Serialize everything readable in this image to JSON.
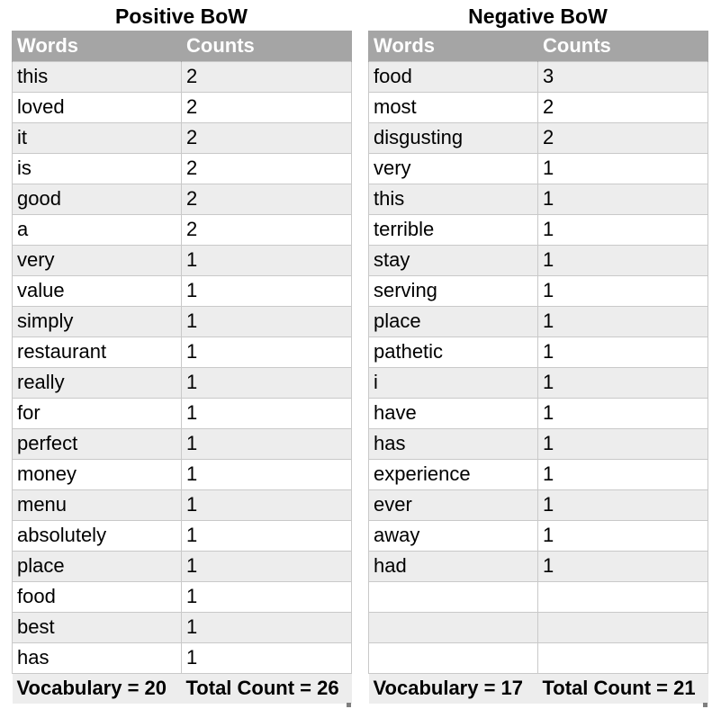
{
  "positive": {
    "title": "Positive BoW",
    "headers": {
      "word": "Words",
      "count": "Counts"
    },
    "rows": [
      {
        "word": "this",
        "count": "2"
      },
      {
        "word": "loved",
        "count": "2"
      },
      {
        "word": "it",
        "count": "2"
      },
      {
        "word": "is",
        "count": "2"
      },
      {
        "word": "good",
        "count": "2"
      },
      {
        "word": "a",
        "count": "2"
      },
      {
        "word": "very",
        "count": "1"
      },
      {
        "word": "value",
        "count": "1"
      },
      {
        "word": "simply",
        "count": "1"
      },
      {
        "word": "restaurant",
        "count": "1"
      },
      {
        "word": "really",
        "count": "1"
      },
      {
        "word": "for",
        "count": "1"
      },
      {
        "word": "perfect",
        "count": "1"
      },
      {
        "word": "money",
        "count": "1"
      },
      {
        "word": "menu",
        "count": "1"
      },
      {
        "word": "absolutely",
        "count": "1"
      },
      {
        "word": "place",
        "count": "1"
      },
      {
        "word": "food",
        "count": "1"
      },
      {
        "word": "best",
        "count": "1"
      },
      {
        "word": "has",
        "count": "1"
      }
    ],
    "footer": {
      "vocabulary": "Vocabulary = 20",
      "total": "Total Count = 26"
    }
  },
  "negative": {
    "title": "Negative BoW",
    "headers": {
      "word": "Words",
      "count": "Counts"
    },
    "rows": [
      {
        "word": "food",
        "count": "3"
      },
      {
        "word": "most",
        "count": "2"
      },
      {
        "word": "disgusting",
        "count": "2"
      },
      {
        "word": "very",
        "count": "1"
      },
      {
        "word": "this",
        "count": "1"
      },
      {
        "word": "terrible",
        "count": "1"
      },
      {
        "word": "stay",
        "count": "1"
      },
      {
        "word": "serving",
        "count": "1"
      },
      {
        "word": "place",
        "count": "1"
      },
      {
        "word": "pathetic",
        "count": "1"
      },
      {
        "word": "i",
        "count": "1"
      },
      {
        "word": "have",
        "count": "1"
      },
      {
        "word": "has",
        "count": "1"
      },
      {
        "word": "experience",
        "count": "1"
      },
      {
        "word": "ever",
        "count": "1"
      },
      {
        "word": "away",
        "count": "1"
      },
      {
        "word": "had",
        "count": "1"
      },
      {
        "word": "",
        "count": ""
      },
      {
        "word": "",
        "count": ""
      },
      {
        "word": "",
        "count": ""
      }
    ],
    "footer": {
      "vocabulary": "Vocabulary = 17",
      "total": "Total Count = 21"
    }
  }
}
